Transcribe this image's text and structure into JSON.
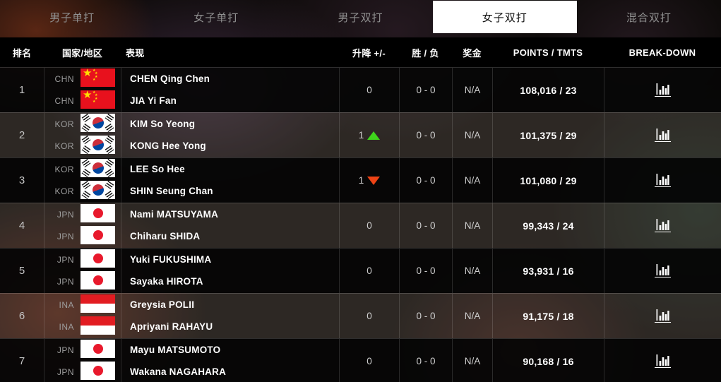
{
  "tabs": [
    {
      "label": "男子单打",
      "active": false
    },
    {
      "label": "女子单打",
      "active": false
    },
    {
      "label": "男子双打",
      "active": false
    },
    {
      "label": "女子双打",
      "active": true
    },
    {
      "label": "混合双打",
      "active": false
    }
  ],
  "table": {
    "headers": {
      "rank": "排名",
      "country": "国家/地区",
      "player": "表现",
      "change": "升降 +/-",
      "winloss": "胜 / 负",
      "prize": "奖金",
      "points": "POINTS / TMTS",
      "breakdown": "BREAK-DOWN"
    },
    "breakdown_icon": "bar-chart-icon",
    "rows": [
      {
        "rank": "1",
        "players": [
          {
            "code": "CHN",
            "name": "CHEN Qing Chen"
          },
          {
            "code": "CHN",
            "name": "JIA Yi Fan"
          }
        ],
        "change": {
          "value": "0",
          "direction": "none"
        },
        "winloss": "0 - 0",
        "prize": "N/A",
        "points": "108,016 / 23"
      },
      {
        "rank": "2",
        "players": [
          {
            "code": "KOR",
            "name": "KIM So Yeong"
          },
          {
            "code": "KOR",
            "name": "KONG Hee Yong"
          }
        ],
        "change": {
          "value": "1",
          "direction": "up"
        },
        "winloss": "0 - 0",
        "prize": "N/A",
        "points": "101,375 / 29"
      },
      {
        "rank": "3",
        "players": [
          {
            "code": "KOR",
            "name": "LEE So Hee"
          },
          {
            "code": "KOR",
            "name": "SHIN Seung Chan"
          }
        ],
        "change": {
          "value": "1",
          "direction": "down"
        },
        "winloss": "0 - 0",
        "prize": "N/A",
        "points": "101,080 / 29"
      },
      {
        "rank": "4",
        "players": [
          {
            "code": "JPN",
            "name": "Nami MATSUYAMA"
          },
          {
            "code": "JPN",
            "name": "Chiharu SHIDA"
          }
        ],
        "change": {
          "value": "0",
          "direction": "none"
        },
        "winloss": "0 - 0",
        "prize": "N/A",
        "points": "99,343 / 24"
      },
      {
        "rank": "5",
        "players": [
          {
            "code": "JPN",
            "name": "Yuki FUKUSHIMA"
          },
          {
            "code": "JPN",
            "name": "Sayaka HIROTA"
          }
        ],
        "change": {
          "value": "0",
          "direction": "none"
        },
        "winloss": "0 - 0",
        "prize": "N/A",
        "points": "93,931 / 16"
      },
      {
        "rank": "6",
        "players": [
          {
            "code": "INA",
            "name": "Greysia POLII"
          },
          {
            "code": "INA",
            "name": "Apriyani RAHAYU"
          }
        ],
        "change": {
          "value": "0",
          "direction": "none"
        },
        "winloss": "0 - 0",
        "prize": "N/A",
        "points": "91,175 / 18"
      },
      {
        "rank": "7",
        "players": [
          {
            "code": "JPN",
            "name": "Mayu MATSUMOTO"
          },
          {
            "code": "JPN",
            "name": "Wakana NAGAHARA"
          }
        ],
        "change": {
          "value": "0",
          "direction": "none"
        },
        "winloss": "0 - 0",
        "prize": "N/A",
        "points": "90,168 / 16"
      }
    ]
  },
  "colors": {
    "up_triangle": "#3fd51c",
    "down_triangle": "#ee4315",
    "active_tab_bg": "#ffffff",
    "header_bg": "#000000",
    "points_text": "#ffffff"
  }
}
